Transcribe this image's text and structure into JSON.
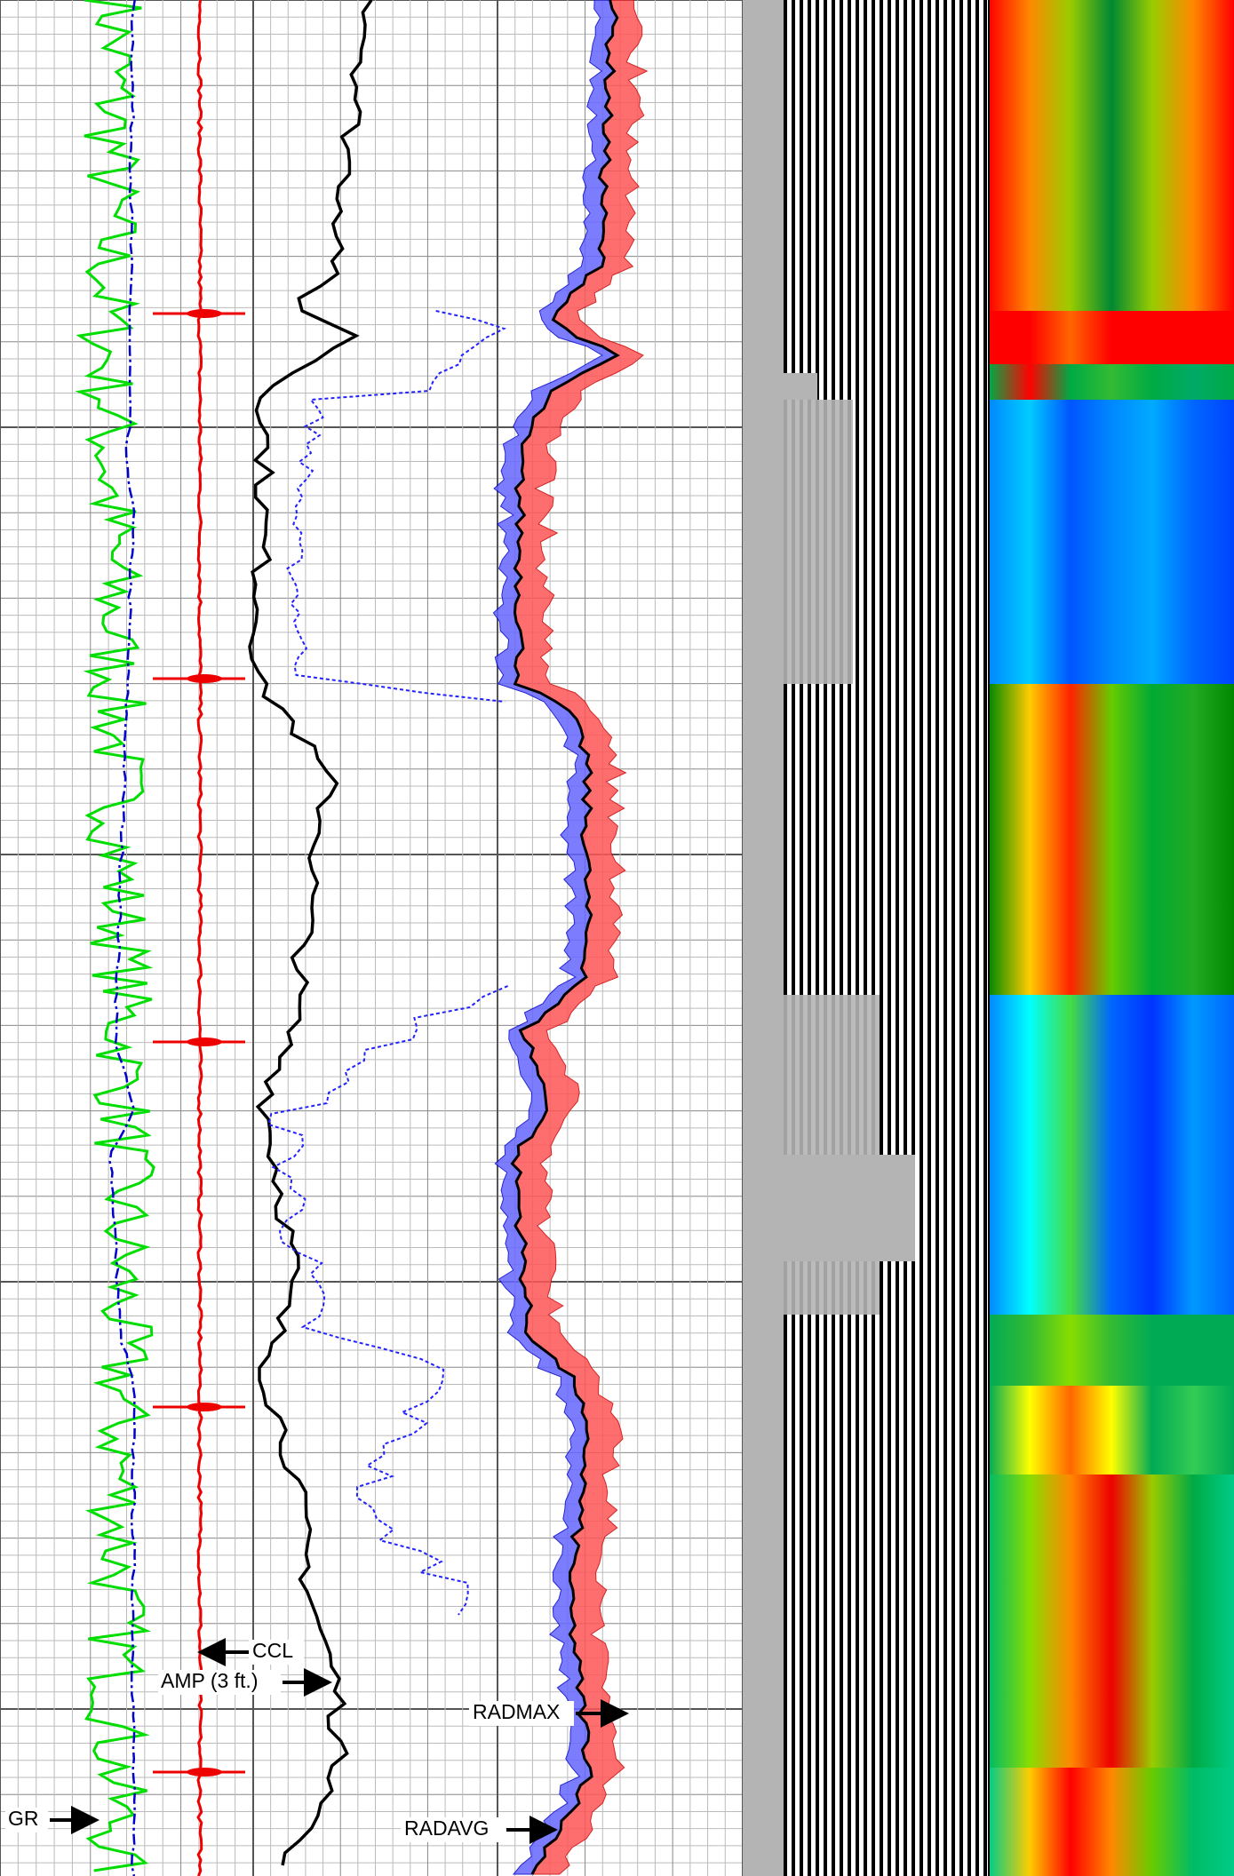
{
  "labels": {
    "ccl": "CCL",
    "amp": "AMP (3 ft.)",
    "radmax": "RADMAX",
    "gr": "GR",
    "radavg": "RADAVG"
  }
}
